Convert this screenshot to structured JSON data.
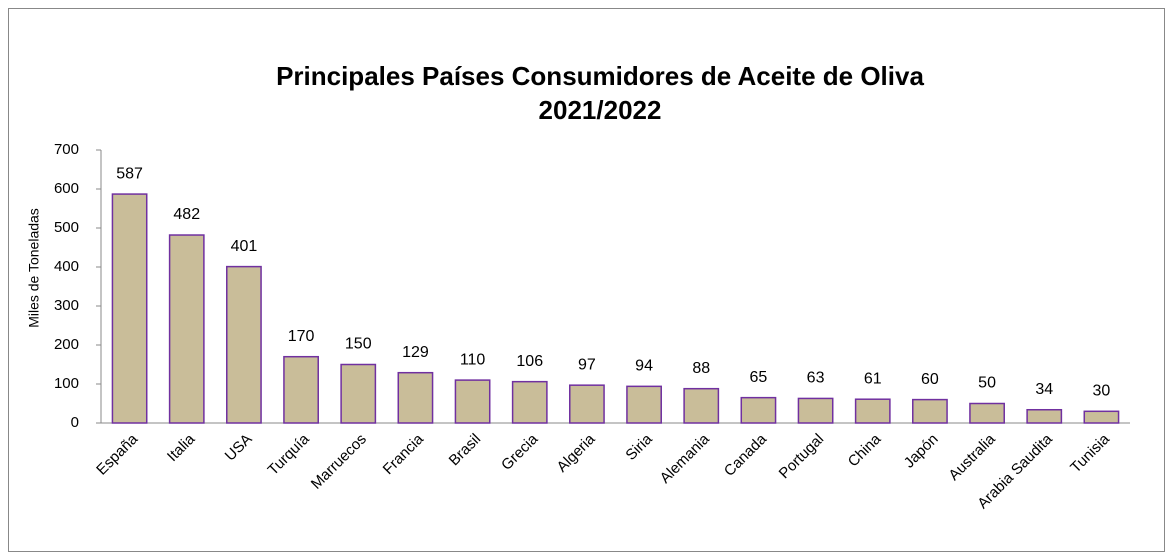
{
  "chart_data": {
    "type": "bar",
    "title": [
      "Principales Países Consumidores de Aceite de Oliva",
      "2021/2022"
    ],
    "ylabel": "Miles de Toneladas",
    "categories": [
      "España",
      "Italia",
      "USA",
      "Turquía",
      "Marruecos",
      "Francia",
      "Brasil",
      "Grecia",
      "Algeria",
      "Siria",
      "Alemania",
      "Canada",
      "Portugal",
      "China",
      "Japón",
      "Australia",
      "Arabia Saudita",
      "Tunisia"
    ],
    "values": [
      587,
      482,
      401,
      170,
      150,
      129,
      110,
      106,
      97,
      94,
      88,
      65,
      63,
      61,
      60,
      50,
      34,
      30
    ],
    "color": "#c9bd99",
    "edgecolor": "#7030a0",
    "ylim": [
      0,
      700
    ],
    "yticks": [
      0,
      100,
      200,
      300,
      400,
      500,
      600,
      700
    ],
    "grid": false
  }
}
